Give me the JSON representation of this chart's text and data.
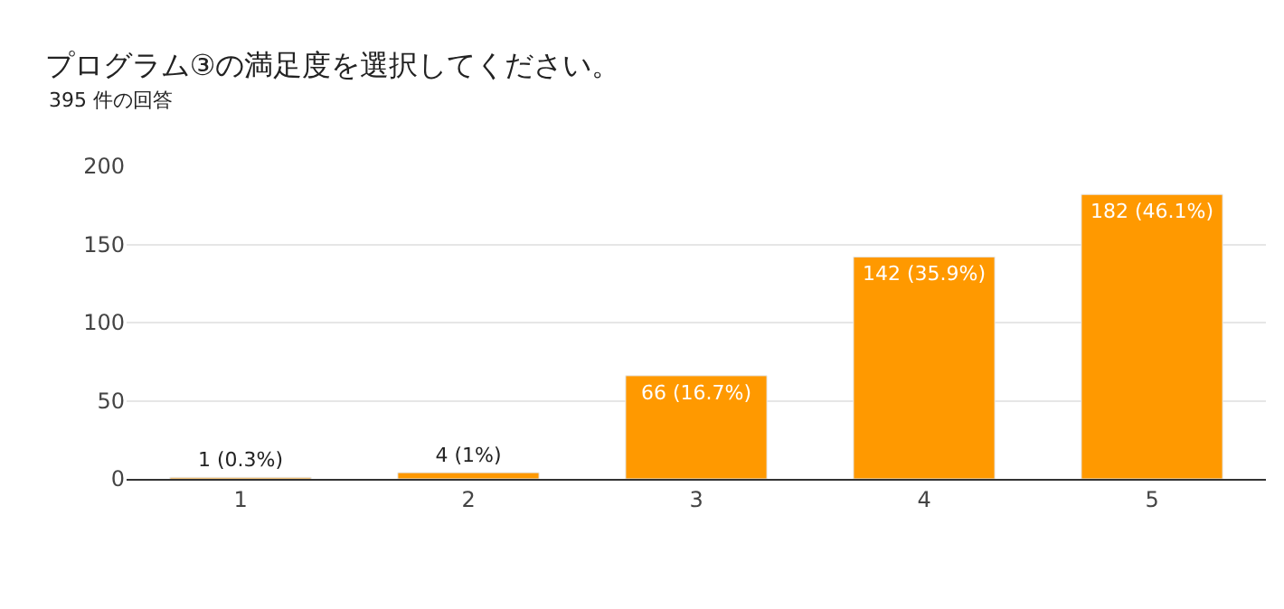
{
  "chart_data": {
    "type": "bar",
    "title": "プログラム③の満足度を選択してください。",
    "subtitle": "395 件の回答",
    "categories": [
      "1",
      "2",
      "3",
      "4",
      "5"
    ],
    "values": [
      1,
      4,
      66,
      142,
      182
    ],
    "value_labels": [
      "1 (0.3%)",
      "4 (1%)",
      "66 (16.7%)",
      "142 (35.9%)",
      "182 (46.1%)"
    ],
    "color": "#ff9900",
    "ylim": [
      0,
      200
    ],
    "yticks": [
      0,
      50,
      100,
      150,
      200
    ],
    "grid": "y",
    "legend": false
  }
}
